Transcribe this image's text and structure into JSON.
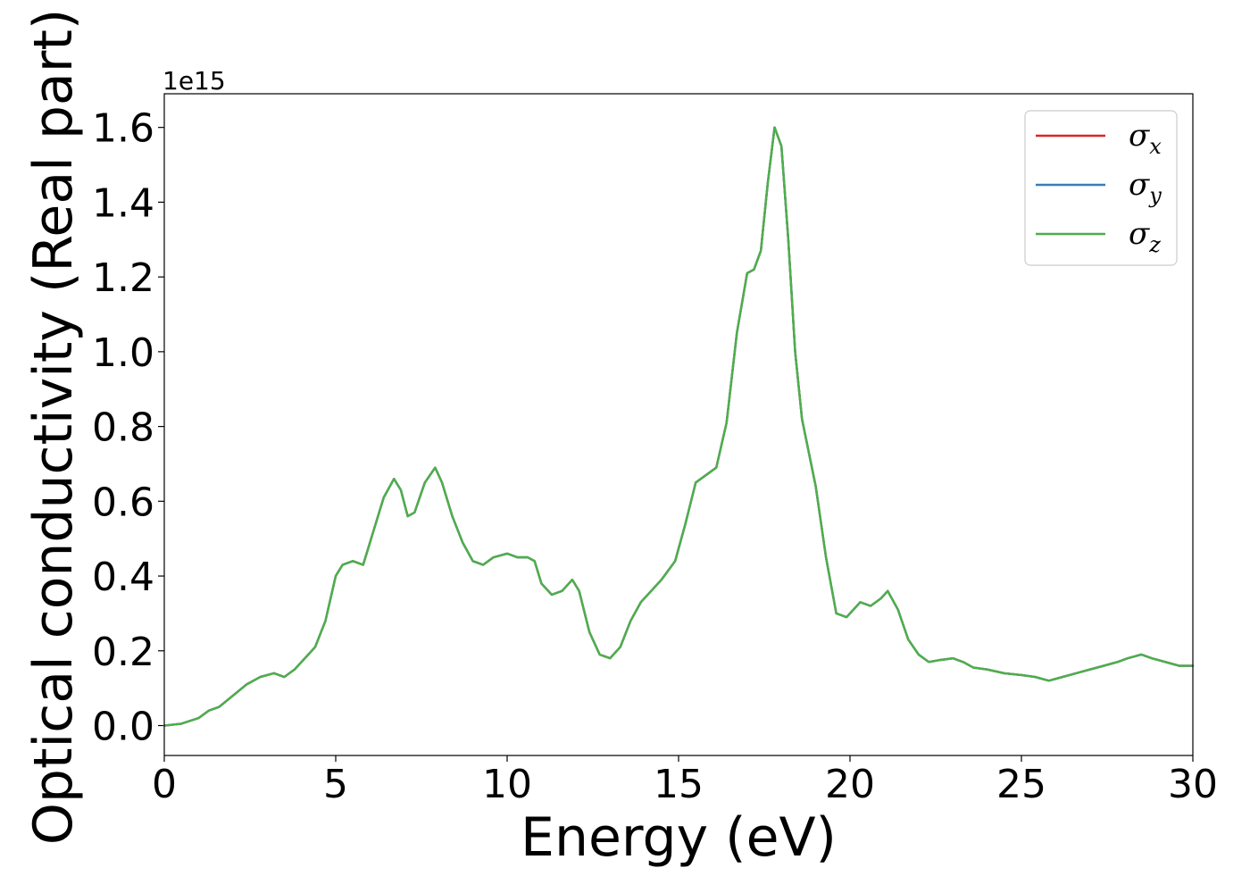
{
  "chart_data": {
    "type": "line",
    "xlabel": "Energy (eV)",
    "ylabel": "Optical conductivity (Real part)",
    "y_offset_label": "1e15",
    "xlim": [
      0,
      30
    ],
    "ylim": [
      -0.08,
      1.69
    ],
    "x_ticks": [
      0,
      5,
      10,
      15,
      20,
      25,
      30
    ],
    "x_tick_labels": [
      "0",
      "5",
      "10",
      "15",
      "20",
      "25",
      "30"
    ],
    "y_ticks": [
      0.0,
      0.2,
      0.4,
      0.6,
      0.8,
      1.0,
      1.2,
      1.4,
      1.6
    ],
    "y_tick_labels": [
      "0.0",
      "0.2",
      "0.4",
      "0.6",
      "0.8",
      "1.0",
      "1.2",
      "1.4",
      "1.6"
    ],
    "grid": false,
    "legend_position": "top-right",
    "legend": [
      {
        "symbol": "σ",
        "subscript": "x",
        "color": "#d62728"
      },
      {
        "symbol": "σ",
        "subscript": "y",
        "color": "#377eb8"
      },
      {
        "symbol": "σ",
        "subscript": "z",
        "color": "#4daf4a"
      }
    ],
    "x": [
      0,
      0.5,
      1.0,
      1.3,
      1.6,
      2.0,
      2.4,
      2.8,
      3.2,
      3.5,
      3.8,
      4.1,
      4.4,
      4.7,
      5.0,
      5.2,
      5.5,
      5.8,
      6.1,
      6.4,
      6.7,
      6.9,
      7.1,
      7.3,
      7.6,
      7.9,
      8.1,
      8.4,
      8.7,
      9.0,
      9.3,
      9.6,
      10.0,
      10.3,
      10.6,
      10.8,
      11.0,
      11.3,
      11.6,
      11.9,
      12.1,
      12.4,
      12.7,
      13.0,
      13.3,
      13.6,
      13.9,
      14.2,
      14.5,
      14.9,
      15.2,
      15.5,
      15.8,
      16.1,
      16.4,
      16.7,
      17.0,
      17.2,
      17.4,
      17.6,
      17.8,
      18.0,
      18.2,
      18.4,
      18.6,
      18.8,
      19.0,
      19.3,
      19.6,
      19.9,
      20.1,
      20.3,
      20.6,
      20.9,
      21.1,
      21.4,
      21.7,
      22.0,
      22.3,
      22.6,
      23.0,
      23.3,
      23.6,
      24.0,
      24.5,
      25.0,
      25.4,
      25.8,
      26.2,
      26.6,
      27.0,
      27.4,
      27.8,
      28.1,
      28.5,
      28.8,
      29.2,
      29.6,
      30.0
    ],
    "series": [
      {
        "name": "σx",
        "color": "#d62728",
        "values": [
          0.0,
          0.005,
          0.02,
          0.04,
          0.05,
          0.08,
          0.11,
          0.13,
          0.14,
          0.13,
          0.15,
          0.18,
          0.21,
          0.28,
          0.4,
          0.43,
          0.44,
          0.43,
          0.52,
          0.61,
          0.66,
          0.63,
          0.56,
          0.57,
          0.65,
          0.69,
          0.65,
          0.56,
          0.49,
          0.44,
          0.43,
          0.45,
          0.46,
          0.45,
          0.45,
          0.44,
          0.38,
          0.35,
          0.36,
          0.39,
          0.36,
          0.25,
          0.19,
          0.18,
          0.21,
          0.28,
          0.33,
          0.36,
          0.39,
          0.44,
          0.54,
          0.65,
          0.67,
          0.69,
          0.81,
          1.05,
          1.21,
          1.22,
          1.27,
          1.45,
          1.6,
          1.55,
          1.3,
          1.0,
          0.82,
          0.73,
          0.64,
          0.45,
          0.3,
          0.29,
          0.31,
          0.33,
          0.32,
          0.34,
          0.36,
          0.31,
          0.23,
          0.19,
          0.17,
          0.175,
          0.18,
          0.17,
          0.155,
          0.15,
          0.14,
          0.135,
          0.13,
          0.12,
          0.13,
          0.14,
          0.15,
          0.16,
          0.17,
          0.18,
          0.19,
          0.18,
          0.17,
          0.16,
          0.16
        ]
      },
      {
        "name": "σy",
        "color": "#377eb8",
        "values": [
          0.0,
          0.005,
          0.02,
          0.04,
          0.05,
          0.08,
          0.11,
          0.13,
          0.14,
          0.13,
          0.15,
          0.18,
          0.21,
          0.28,
          0.4,
          0.43,
          0.44,
          0.43,
          0.52,
          0.61,
          0.66,
          0.63,
          0.56,
          0.57,
          0.65,
          0.69,
          0.65,
          0.56,
          0.49,
          0.44,
          0.43,
          0.45,
          0.46,
          0.45,
          0.45,
          0.44,
          0.38,
          0.35,
          0.36,
          0.39,
          0.36,
          0.25,
          0.19,
          0.18,
          0.21,
          0.28,
          0.33,
          0.36,
          0.39,
          0.44,
          0.54,
          0.65,
          0.67,
          0.69,
          0.81,
          1.05,
          1.21,
          1.22,
          1.27,
          1.45,
          1.6,
          1.55,
          1.3,
          1.0,
          0.82,
          0.73,
          0.64,
          0.45,
          0.3,
          0.29,
          0.31,
          0.33,
          0.32,
          0.34,
          0.36,
          0.31,
          0.23,
          0.19,
          0.17,
          0.175,
          0.18,
          0.17,
          0.155,
          0.15,
          0.14,
          0.135,
          0.13,
          0.12,
          0.13,
          0.14,
          0.15,
          0.16,
          0.17,
          0.18,
          0.19,
          0.18,
          0.17,
          0.16,
          0.16
        ]
      },
      {
        "name": "σz",
        "color": "#4daf4a",
        "values": [
          0.0,
          0.005,
          0.02,
          0.04,
          0.05,
          0.08,
          0.11,
          0.13,
          0.14,
          0.13,
          0.15,
          0.18,
          0.21,
          0.28,
          0.4,
          0.43,
          0.44,
          0.43,
          0.52,
          0.61,
          0.66,
          0.63,
          0.56,
          0.57,
          0.65,
          0.69,
          0.65,
          0.56,
          0.49,
          0.44,
          0.43,
          0.45,
          0.46,
          0.45,
          0.45,
          0.44,
          0.38,
          0.35,
          0.36,
          0.39,
          0.36,
          0.25,
          0.19,
          0.18,
          0.21,
          0.28,
          0.33,
          0.36,
          0.39,
          0.44,
          0.54,
          0.65,
          0.67,
          0.69,
          0.81,
          1.05,
          1.21,
          1.22,
          1.27,
          1.45,
          1.6,
          1.55,
          1.3,
          1.0,
          0.82,
          0.73,
          0.64,
          0.45,
          0.3,
          0.29,
          0.31,
          0.33,
          0.32,
          0.34,
          0.36,
          0.31,
          0.23,
          0.19,
          0.17,
          0.175,
          0.18,
          0.17,
          0.155,
          0.15,
          0.14,
          0.135,
          0.13,
          0.12,
          0.13,
          0.14,
          0.15,
          0.16,
          0.17,
          0.18,
          0.19,
          0.18,
          0.17,
          0.16,
          0.16
        ]
      }
    ]
  }
}
